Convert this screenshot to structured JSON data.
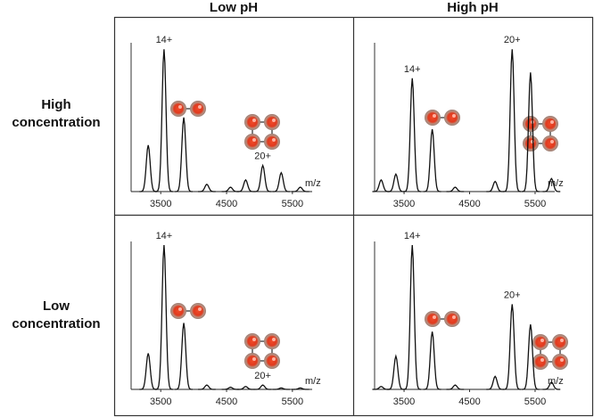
{
  "column_headers": [
    "Low pH",
    "High pH"
  ],
  "row_headers": [
    "High concentration",
    "Low concentration"
  ],
  "chart_data": [
    {
      "type": "spectrum",
      "x_label": "m/z",
      "xlim": [
        3050,
        5800
      ],
      "ylim": [
        0,
        100
      ],
      "xticks": [
        3500,
        4500,
        5500
      ],
      "x": [
        3310,
        3550,
        3850,
        4200,
        4560,
        4790,
        5050,
        5330,
        5620
      ],
      "values": [
        32,
        98,
        51,
        5,
        3,
        8,
        18,
        13,
        3
      ],
      "peak_labels": [
        null,
        "14+",
        null,
        null,
        null,
        null,
        "20+",
        null,
        null
      ]
    },
    {
      "type": "spectrum",
      "x_label": "m/z",
      "xlim": [
        3050,
        5800
      ],
      "ylim": [
        0,
        100
      ],
      "xticks": [
        3500,
        4500,
        5500
      ],
      "x": [
        3150,
        3375,
        3625,
        3930,
        4280,
        4890,
        5150,
        5430,
        5750
      ],
      "values": [
        8,
        12,
        78,
        43,
        3,
        7,
        98,
        82,
        9
      ],
      "peak_labels": [
        null,
        null,
        "14+",
        null,
        null,
        null,
        "20+",
        null,
        null
      ]
    },
    {
      "type": "spectrum",
      "x_label": "m/z",
      "xlim": [
        3050,
        5800
      ],
      "ylim": [
        0,
        100
      ],
      "xticks": [
        3500,
        4500,
        5500
      ],
      "x": [
        3310,
        3550,
        3850,
        4200,
        4560,
        4790,
        5050,
        5330,
        5620
      ],
      "values": [
        25,
        100,
        46,
        3,
        1.5,
        2,
        3,
        1,
        1
      ],
      "peak_labels": [
        null,
        "14+",
        null,
        null,
        null,
        null,
        "20+",
        null,
        null
      ]
    },
    {
      "type": "spectrum",
      "x_label": "m/z",
      "xlim": [
        3050,
        5800
      ],
      "ylim": [
        0,
        100
      ],
      "xticks": [
        3500,
        4500,
        5500
      ],
      "x": [
        3150,
        3375,
        3625,
        3930,
        4280,
        4890,
        5150,
        5430,
        5750
      ],
      "values": [
        2,
        23,
        100,
        40,
        3,
        9,
        59,
        45,
        5
      ],
      "peak_labels": [
        null,
        null,
        "14+",
        null,
        null,
        null,
        "20+",
        null,
        null
      ]
    }
  ]
}
